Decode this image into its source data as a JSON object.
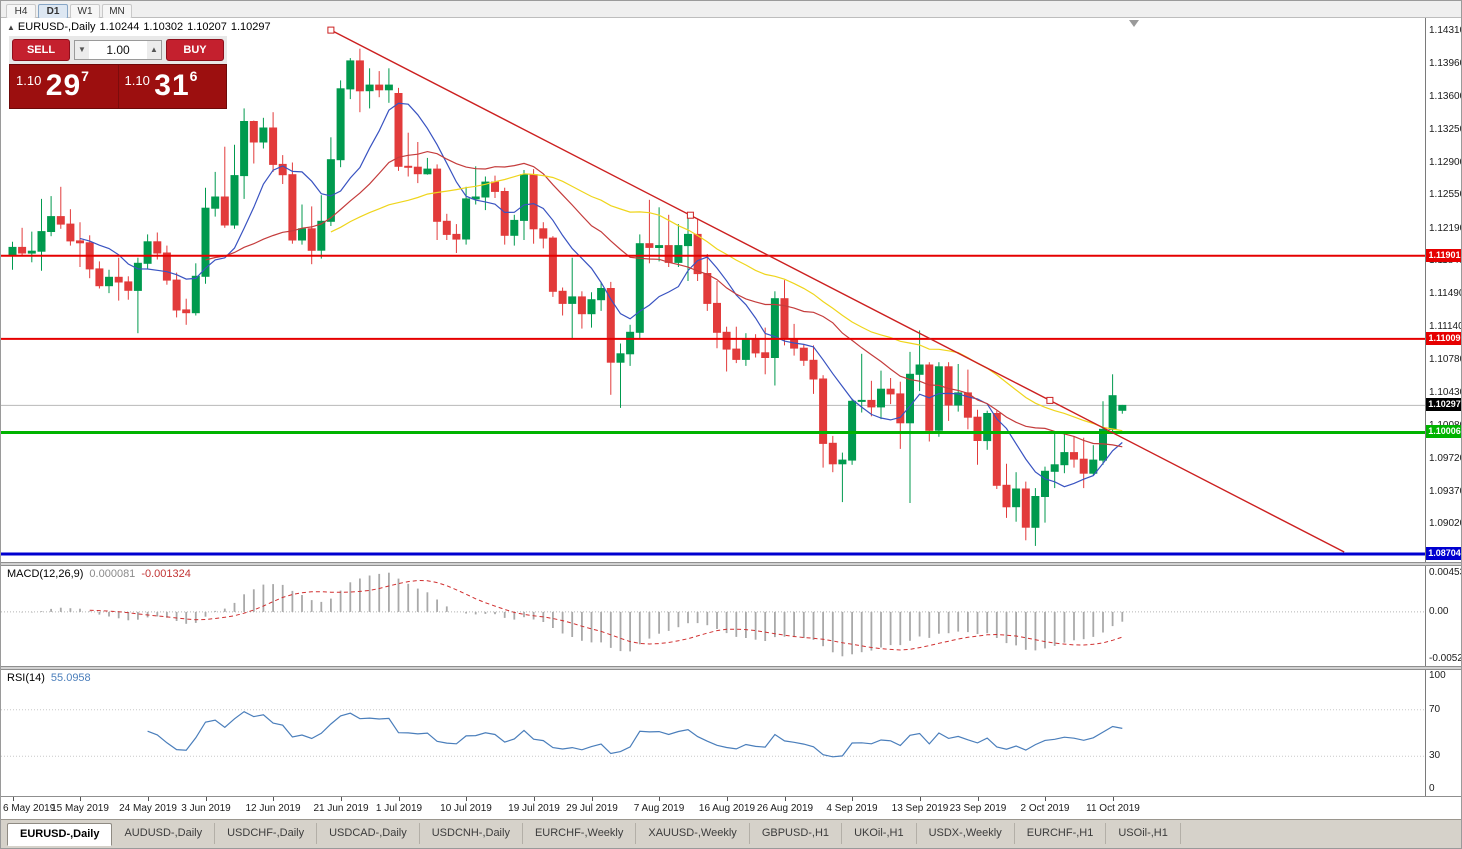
{
  "toolbar": {
    "timeframes": [
      {
        "label": "H4",
        "active": false
      },
      {
        "label": "D1",
        "active": true
      },
      {
        "label": "W1",
        "active": false
      },
      {
        "label": "MN",
        "active": false
      }
    ]
  },
  "chart_title": {
    "symbol": "EURUSD-,Daily",
    "open": "1.10244",
    "high": "1.10302",
    "low": "1.10207",
    "close": "1.10297"
  },
  "trade_widget": {
    "sell_label": "SELL",
    "buy_label": "BUY",
    "volume": "1.00",
    "sell": {
      "base": "1.10",
      "big": "29",
      "sup": "7"
    },
    "buy": {
      "base": "1.10",
      "big": "31",
      "sup": "6"
    }
  },
  "price_axis": {
    "labels": [
      "1.14310",
      "1.13960",
      "1.13600",
      "1.13250",
      "1.12900",
      "1.12550",
      "1.12190",
      "1.11840",
      "1.11490",
      "1.11140",
      "1.10780",
      "1.10430",
      "1.10080",
      "1.09720",
      "1.09370",
      "1.09020"
    ]
  },
  "hlines": [
    {
      "price": 1.11901,
      "label": "1.11901",
      "color": "#e60000",
      "thickness": 2
    },
    {
      "price": 1.11009,
      "label": "1.11009",
      "color": "#e60000",
      "thickness": 2
    },
    {
      "price": 1.10006,
      "label": "1.10006",
      "color": "#00b300",
      "thickness": 3
    },
    {
      "price": 1.08704,
      "label": "1.08704",
      "color": "#0000d0",
      "thickness": 3
    }
  ],
  "current_price": {
    "value": 1.10297,
    "label": "1.10297",
    "line_color": "#b8b8b8",
    "badge_color": "#000000"
  },
  "trendline": {
    "color": "#cc2020",
    "p1": {
      "index": 33,
      "price": 1.1432
    },
    "p2": {
      "index": 107.5,
      "price": 1.1035
    },
    "extend_to_index": 138
  },
  "macd": {
    "label": "MACD(12,26,9)",
    "main_value": "0.000081",
    "signal_value": "-0.001324",
    "fast": 12,
    "slow": 26,
    "signal": 9,
    "axis_labels": [
      "0.004536",
      "0.00",
      "-0.005205"
    ],
    "range": [
      -0.005205,
      0.004536
    ],
    "histogram_color": "#a9a9a9",
    "signal_color": "#d03030"
  },
  "rsi": {
    "label": "RSI(14)",
    "value": "55.0958",
    "period": 14,
    "axis_labels": [
      "100",
      "70",
      "30",
      "0"
    ],
    "levels": [
      70,
      30
    ],
    "line_color": "#4a7ebb"
  },
  "date_axis": [
    {
      "label": "6 May 2019",
      "i": 0
    },
    {
      "label": "15 May 2019",
      "i": 7
    },
    {
      "label": "24 May 2019",
      "i": 14
    },
    {
      "label": "3 Jun 2019",
      "i": 20
    },
    {
      "label": "12 Jun 2019",
      "i": 27
    },
    {
      "label": "21 Jun 2019",
      "i": 34
    },
    {
      "label": "1 Jul 2019",
      "i": 40
    },
    {
      "label": "10 Jul 2019",
      "i": 47
    },
    {
      "label": "19 Jul 2019",
      "i": 54
    },
    {
      "label": "29 Jul 2019",
      "i": 60
    },
    {
      "label": "7 Aug 2019",
      "i": 67
    },
    {
      "label": "16 Aug 2019",
      "i": 74
    },
    {
      "label": "26 Aug 2019",
      "i": 80
    },
    {
      "label": "4 Sep 2019",
      "i": 87
    },
    {
      "label": "13 Sep 2019",
      "i": 94
    },
    {
      "label": "23 Sep 2019",
      "i": 100
    },
    {
      "label": "2 Oct 2019",
      "i": 107
    },
    {
      "label": "11 Oct 2019",
      "i": 114
    }
  ],
  "tabs": [
    {
      "label": "EURUSD-,Daily",
      "active": true
    },
    {
      "label": "AUDUSD-,Daily",
      "active": false
    },
    {
      "label": "USDCHF-,Daily",
      "active": false
    },
    {
      "label": "USDCAD-,Daily",
      "active": false
    },
    {
      "label": "USDCNH-,Daily",
      "active": false
    },
    {
      "label": "EURCHF-,Weekly",
      "active": false
    },
    {
      "label": "XAUUSD-,Weekly",
      "active": false
    },
    {
      "label": "GBPUSD-,H1",
      "active": false
    },
    {
      "label": "UKOil-,H1",
      "active": false
    },
    {
      "label": "USDX-,Weekly",
      "active": false
    },
    {
      "label": "EURCHF-,H1",
      "active": false
    },
    {
      "label": "USOil-,H1",
      "active": false
    }
  ],
  "chart_data": {
    "type": "candlestick",
    "symbol": "EURUSD",
    "timeframe": "Daily",
    "ylim": [
      1.0862,
      1.14449
    ],
    "colors": {
      "up": "#009a4e",
      "down": "#e23b3b"
    },
    "ma_lines": [
      {
        "name": "MA-fast",
        "period": 8,
        "color": "#3953c1"
      },
      {
        "name": "MA-mid",
        "period": 21,
        "color": "#c43c3c"
      },
      {
        "name": "MA-slow",
        "period": 34,
        "color": "#efd51c"
      }
    ],
    "candles": [
      [
        1.119,
        1.1205,
        1.1175,
        1.1199
      ],
      [
        1.1199,
        1.122,
        1.119,
        1.1193
      ],
      [
        1.1193,
        1.1216,
        1.1183,
        1.1195
      ],
      [
        1.1195,
        1.1251,
        1.1174,
        1.1216
      ],
      [
        1.1216,
        1.1254,
        1.1211,
        1.1232
      ],
      [
        1.1232,
        1.1264,
        1.1219,
        1.1224
      ],
      [
        1.1224,
        1.124,
        1.1201,
        1.1206
      ],
      [
        1.1206,
        1.1226,
        1.1178,
        1.1204
      ],
      [
        1.1204,
        1.1212,
        1.1166,
        1.1176
      ],
      [
        1.1176,
        1.1184,
        1.1155,
        1.1158
      ],
      [
        1.1158,
        1.1175,
        1.115,
        1.1167
      ],
      [
        1.1167,
        1.1188,
        1.1142,
        1.1162
      ],
      [
        1.1162,
        1.1168,
        1.1143,
        1.1153
      ],
      [
        1.1153,
        1.1188,
        1.1107,
        1.1182
      ],
      [
        1.1182,
        1.1213,
        1.1176,
        1.1205
      ],
      [
        1.1205,
        1.1215,
        1.1186,
        1.1193
      ],
      [
        1.1193,
        1.1201,
        1.1159,
        1.1164
      ],
      [
        1.1164,
        1.1172,
        1.1124,
        1.1132
      ],
      [
        1.1132,
        1.1144,
        1.1116,
        1.1129
      ],
      [
        1.1129,
        1.1182,
        1.1126,
        1.1168
      ],
      [
        1.1168,
        1.1263,
        1.116,
        1.1241
      ],
      [
        1.1241,
        1.128,
        1.1232,
        1.1253
      ],
      [
        1.1253,
        1.1307,
        1.122,
        1.1223
      ],
      [
        1.1223,
        1.1309,
        1.1219,
        1.1276
      ],
      [
        1.1276,
        1.1348,
        1.1251,
        1.1334
      ],
      [
        1.1334,
        1.1335,
        1.1289,
        1.1312
      ],
      [
        1.1312,
        1.1338,
        1.1305,
        1.1327
      ],
      [
        1.1327,
        1.1344,
        1.128,
        1.1288
      ],
      [
        1.1288,
        1.1298,
        1.1267,
        1.1277
      ],
      [
        1.1277,
        1.129,
        1.1203,
        1.1207
      ],
      [
        1.1207,
        1.1245,
        1.1202,
        1.1219
      ],
      [
        1.1219,
        1.1243,
        1.1181,
        1.1196
      ],
      [
        1.1196,
        1.1255,
        1.1187,
        1.1227
      ],
      [
        1.1227,
        1.1317,
        1.1222,
        1.1293
      ],
      [
        1.1293,
        1.1378,
        1.1285,
        1.1369
      ],
      [
        1.1369,
        1.1402,
        1.1358,
        1.1399
      ],
      [
        1.1399,
        1.1412,
        1.1344,
        1.1367
      ],
      [
        1.1367,
        1.1391,
        1.1348,
        1.1373
      ],
      [
        1.1373,
        1.1388,
        1.136,
        1.1368
      ],
      [
        1.1368,
        1.1391,
        1.1354,
        1.1373
      ],
      [
        1.1364,
        1.137,
        1.1281,
        1.1286
      ],
      [
        1.1286,
        1.1322,
        1.1275,
        1.1285
      ],
      [
        1.1285,
        1.1312,
        1.1268,
        1.1278
      ],
      [
        1.1278,
        1.1295,
        1.1277,
        1.1283
      ],
      [
        1.1283,
        1.1288,
        1.1207,
        1.1227
      ],
      [
        1.1227,
        1.1235,
        1.1207,
        1.1213
      ],
      [
        1.1213,
        1.1224,
        1.1193,
        1.1208
      ],
      [
        1.1208,
        1.1264,
        1.1202,
        1.1251
      ],
      [
        1.1251,
        1.1286,
        1.1245,
        1.1253
      ],
      [
        1.1253,
        1.1275,
        1.1239,
        1.1269
      ],
      [
        1.1269,
        1.1276,
        1.1252,
        1.1259
      ],
      [
        1.1259,
        1.1263,
        1.1202,
        1.1212
      ],
      [
        1.1212,
        1.1234,
        1.1201,
        1.1228
      ],
      [
        1.1228,
        1.1282,
        1.1207,
        1.1277
      ],
      [
        1.1277,
        1.1283,
        1.1203,
        1.1219
      ],
      [
        1.1219,
        1.1226,
        1.1198,
        1.1209
      ],
      [
        1.1209,
        1.1211,
        1.1146,
        1.1152
      ],
      [
        1.1152,
        1.1156,
        1.1126,
        1.1139
      ],
      [
        1.1139,
        1.1188,
        1.1101,
        1.1146
      ],
      [
        1.1146,
        1.1152,
        1.1112,
        1.1128
      ],
      [
        1.1128,
        1.1151,
        1.1113,
        1.1143
      ],
      [
        1.1143,
        1.1162,
        1.1131,
        1.1155
      ],
      [
        1.1155,
        1.1162,
        1.1041,
        1.1076
      ],
      [
        1.1076,
        1.1096,
        1.1027,
        1.1085
      ],
      [
        1.1085,
        1.1116,
        1.1072,
        1.1108
      ],
      [
        1.1108,
        1.1213,
        1.1101,
        1.1203
      ],
      [
        1.1203,
        1.125,
        1.1182,
        1.1199
      ],
      [
        1.1199,
        1.1242,
        1.1184,
        1.1201
      ],
      [
        1.1201,
        1.1234,
        1.1178,
        1.1183
      ],
      [
        1.1183,
        1.1224,
        1.1178,
        1.1201
      ],
      [
        1.1201,
        1.1232,
        1.1163,
        1.1213
      ],
      [
        1.1213,
        1.123,
        1.1163,
        1.1171
      ],
      [
        1.1171,
        1.1192,
        1.1131,
        1.1139
      ],
      [
        1.1139,
        1.1163,
        1.1091,
        1.1108
      ],
      [
        1.1108,
        1.1114,
        1.1066,
        1.109
      ],
      [
        1.109,
        1.1114,
        1.1075,
        1.1079
      ],
      [
        1.1079,
        1.1107,
        1.1072,
        1.11
      ],
      [
        1.11,
        1.1106,
        1.1081,
        1.1086
      ],
      [
        1.1086,
        1.1113,
        1.1063,
        1.1081
      ],
      [
        1.1081,
        1.1152,
        1.1051,
        1.1144
      ],
      [
        1.1144,
        1.1164,
        1.1094,
        1.1101
      ],
      [
        1.1101,
        1.1117,
        1.1083,
        1.1091
      ],
      [
        1.1091,
        1.1095,
        1.1072,
        1.1078
      ],
      [
        1.1078,
        1.1094,
        1.1042,
        1.1058
      ],
      [
        1.1058,
        1.1062,
        1.0963,
        1.0989
      ],
      [
        1.0989,
        1.0997,
        1.0958,
        1.0967
      ],
      [
        1.0967,
        1.0979,
        1.0926,
        1.0971
      ],
      [
        1.0971,
        1.1037,
        1.0966,
        1.1034
      ],
      [
        1.1034,
        1.1085,
        1.1022,
        1.1035
      ],
      [
        1.1035,
        1.1056,
        1.1018,
        1.1028
      ],
      [
        1.1028,
        1.1067,
        1.1015,
        1.1047
      ],
      [
        1.1047,
        1.1059,
        1.1031,
        1.1042
      ],
      [
        1.1042,
        1.1055,
        1.0983,
        1.1011
      ],
      [
        1.1011,
        1.1087,
        1.0925,
        1.1063
      ],
      [
        1.1063,
        1.111,
        1.1045,
        1.1073
      ],
      [
        1.1073,
        1.1076,
        1.0991,
        1.1003
      ],
      [
        1.1003,
        1.1076,
        1.0996,
        1.1071
      ],
      [
        1.1071,
        1.1076,
        1.1013,
        1.103
      ],
      [
        1.103,
        1.1074,
        1.1023,
        1.1043
      ],
      [
        1.1043,
        1.1068,
        1.1004,
        1.1017
      ],
      [
        1.1017,
        1.1025,
        1.0966,
        1.0992
      ],
      [
        1.0992,
        1.1024,
        1.0982,
        1.1021
      ],
      [
        1.1021,
        1.1024,
        1.094,
        1.0944
      ],
      [
        1.0944,
        1.0967,
        1.0909,
        1.0921
      ],
      [
        1.0921,
        1.0958,
        1.0905,
        1.094
      ],
      [
        1.094,
        1.0948,
        1.0885,
        1.0899
      ],
      [
        1.0899,
        1.0941,
        1.0879,
        1.0932
      ],
      [
        1.0932,
        1.0964,
        1.0904,
        1.0959
      ],
      [
        1.0959,
        1.0999,
        1.0941,
        1.0966
      ],
      [
        1.0966,
        1.0999,
        1.0957,
        1.0979
      ],
      [
        1.0979,
        1.0996,
        1.0963,
        1.0972
      ],
      [
        1.0972,
        1.0995,
        1.0941,
        1.0957
      ],
      [
        1.0957,
        1.0987,
        1.0955,
        1.0971
      ],
      [
        1.0971,
        1.1034,
        1.0966,
        1.1004
      ],
      [
        1.1004,
        1.1063,
        1.1002,
        1.104
      ],
      [
        1.10244,
        1.10302,
        1.10207,
        1.10297
      ]
    ]
  }
}
